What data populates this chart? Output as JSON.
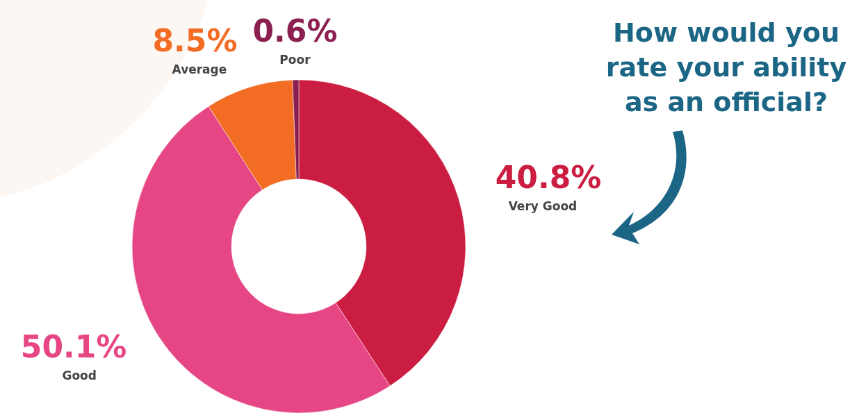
{
  "chart_data": {
    "type": "donut",
    "title": "How would you rate your ability as an official?",
    "categories": [
      "Very Good",
      "Good",
      "Average",
      "Poor"
    ],
    "values": [
      40.8,
      50.1,
      8.5,
      0.6
    ],
    "value_labels": [
      "40.8%",
      "50.1%",
      "8.5%",
      "0.6%"
    ],
    "colors": [
      "#cb1d41",
      "#e64784",
      "#f26c24",
      "#8a1f50"
    ],
    "legend": false
  }
}
